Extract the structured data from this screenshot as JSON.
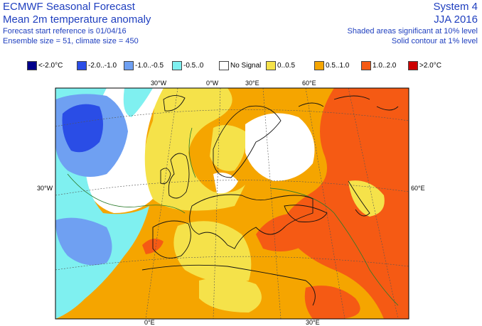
{
  "header": {
    "title": "ECMWF Seasonal Forecast",
    "subtitle": "Mean 2m temperature anomaly",
    "start_ref": "Forecast start reference is 01/04/16",
    "ensemble": "Ensemble size = 51, climate size = 450",
    "system": "System 4",
    "season": "JJA 2016",
    "shaded_note": "Shaded areas significant at 10% level",
    "solid_note": "Solid contour at 1% level"
  },
  "legend": [
    {
      "label": "<-2.0°C",
      "color": "#00008b"
    },
    {
      "label": "-2.0..-1.0",
      "color": "#2a4de6"
    },
    {
      "label": "-1.0..-0.5",
      "color": "#6fa0f2"
    },
    {
      "label": "-0.5..0",
      "color": "#7ff0f0"
    },
    {
      "label": "No Signal",
      "color": "#ffffff"
    },
    {
      "label": "0..0.5",
      "color": "#f5e24a"
    },
    {
      "label": "0.5..1.0",
      "color": "#f5a500"
    },
    {
      "label": "1.0..2.0",
      "color": "#f55a14"
    },
    {
      "label": ">2.0°C",
      "color": "#cc0000"
    }
  ],
  "map": {
    "lon_labels_top": [
      "30°W",
      "0°W",
      "30°E",
      "60°E"
    ],
    "lon_labels_bottom": [
      "0°E",
      "30°E"
    ],
    "lat_labels_left": [
      "30°W"
    ],
    "lat_labels_right": [
      "60°E"
    ]
  }
}
